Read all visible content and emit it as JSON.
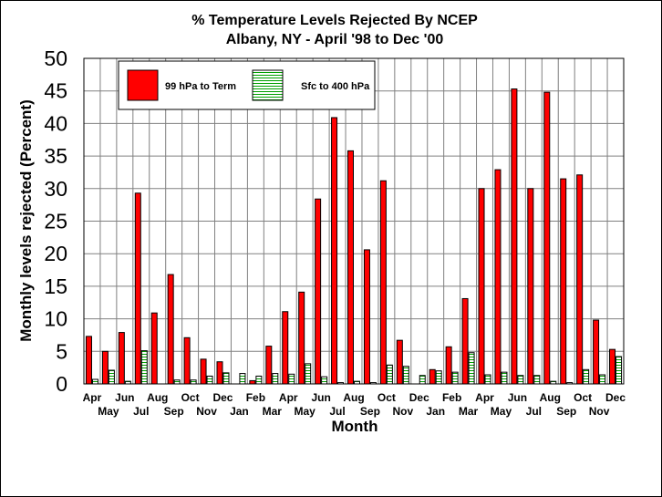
{
  "chart_data": {
    "type": "bar",
    "title": "% Temperature Levels Rejected By NCEP",
    "subtitle": "Albany, NY - April '98 to Dec '00",
    "xlabel": "Month",
    "ylabel": "Monthly levels rejected (Percent)",
    "ylim": [
      0,
      50
    ],
    "yticks": [
      0,
      5,
      10,
      15,
      20,
      25,
      30,
      35,
      40,
      45,
      50
    ],
    "grid": true,
    "legend_position": "top-left",
    "categories": [
      "Apr",
      "May",
      "Jun",
      "Jul",
      "Aug",
      "Sep",
      "Oct",
      "Nov",
      "Dec",
      "Jan",
      "Feb",
      "Mar",
      "Apr",
      "May",
      "Jun",
      "Jul",
      "Aug",
      "Sep",
      "Oct",
      "Nov",
      "Dec",
      "Jan",
      "Feb",
      "Mar",
      "Apr",
      "May",
      "Jun",
      "Jul",
      "Aug",
      "Sep",
      "Oct",
      "Nov",
      "Dec"
    ],
    "series": [
      {
        "name": "99 hPa to Term",
        "color": "#ff0000",
        "pattern": "solid",
        "values": [
          7.3,
          5.0,
          7.9,
          29.3,
          10.9,
          16.8,
          7.1,
          3.8,
          3.4,
          0.0,
          0.5,
          5.8,
          11.1,
          14.1,
          28.4,
          40.9,
          35.8,
          20.6,
          31.2,
          6.7,
          0.0,
          2.2,
          5.7,
          13.1,
          30.0,
          32.9,
          45.3,
          30.0,
          44.8,
          31.5,
          32.1,
          9.8,
          5.3
        ]
      },
      {
        "name": "Sfc to 400 hPa",
        "color": "#00a000",
        "pattern": "horizontal-lines",
        "values": [
          0.7,
          2.1,
          0.4,
          5.1,
          0.0,
          0.6,
          0.6,
          1.2,
          1.7,
          1.6,
          1.2,
          1.6,
          1.5,
          3.1,
          1.1,
          0.2,
          0.4,
          0.2,
          2.9,
          2.7,
          1.3,
          2.0,
          1.8,
          4.8,
          1.4,
          1.8,
          1.3,
          1.3,
          0.4,
          0.2,
          2.2,
          1.4,
          4.2
        ]
      }
    ]
  }
}
